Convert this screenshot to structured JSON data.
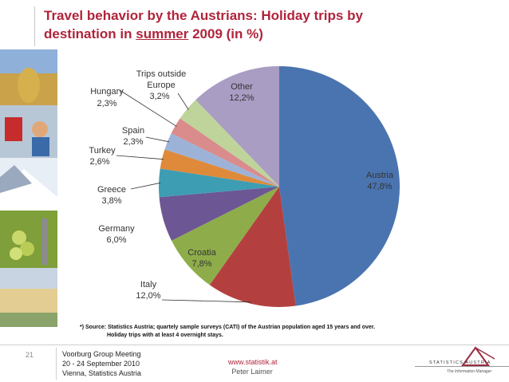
{
  "title": {
    "line1": "Travel behavior by the Austrians: Holiday trips by",
    "line2_pre": "destination in ",
    "line2_emph": "summer",
    "line2_post": " 2009 (in %)"
  },
  "chart_data": {
    "type": "pie",
    "slices": [
      {
        "label": "Austria",
        "value": 47.8,
        "text": "47,8%",
        "color": "#4a74b0"
      },
      {
        "label": "Italy",
        "value": 12.0,
        "text": "12,0%",
        "color": "#b3403f"
      },
      {
        "label": "Croatia",
        "value": 7.8,
        "text": "7,8%",
        "color": "#8ead4a"
      },
      {
        "label": "Germany",
        "value": 6.0,
        "text": "6,0%",
        "color": "#6d5694"
      },
      {
        "label": "Greece",
        "value": 3.8,
        "text": "3,8%",
        "color": "#3d9db2"
      },
      {
        "label": "Turkey",
        "value": 2.6,
        "text": "2,6%",
        "color": "#df8a3a"
      },
      {
        "label": "Spain",
        "value": 2.3,
        "text": "2,3%",
        "color": "#9db2d7"
      },
      {
        "label": "Hungary",
        "value": 2.3,
        "text": "2,3%",
        "color": "#d98c8b"
      },
      {
        "label": "Trips outside Europe",
        "value": 3.2,
        "text": "3,2%",
        "color": "#bfd49a"
      },
      {
        "label": "Other",
        "value": 12.2,
        "text": "12,2%",
        "color": "#a99dc3"
      }
    ]
  },
  "labels": {
    "austria": {
      "name": "Austria",
      "value": "47,8%"
    },
    "italy": {
      "name": "Italy",
      "value": "12,0%"
    },
    "croatia": {
      "name": "Croatia",
      "value": "7,8%"
    },
    "germany": {
      "name": "Germany",
      "value": "6,0%"
    },
    "greece": {
      "name": "Greece",
      "value": "3,8%"
    },
    "turkey": {
      "name": "Turkey",
      "value": "2,6%"
    },
    "spain": {
      "name": "Spain",
      "value": "2,3%"
    },
    "hungary": {
      "name": "Hungary",
      "value": "2,3%"
    },
    "outside": {
      "name1": "Trips outside",
      "name2": "Europe",
      "value": "3,2%"
    },
    "other": {
      "name": "Other",
      "value": "12,2%"
    }
  },
  "footnote": {
    "line1": "*) Source: Statistics Austria; quartely sample surveys (CATI) of the Austrian population aged 15 years and over.",
    "line2": "Holiday trips with at least 4 overnight stays."
  },
  "footer": {
    "slide_number": "21",
    "meeting_line1": "Voorburg Group Meeting",
    "meeting_line2": "20 - 24 September 2010",
    "meeting_line3": "Vienna, Statistics Austria",
    "website": "www.statistik.at",
    "presenter": "Peter Laimer",
    "logo_text": "STATISTICS AUSTRIA",
    "logo_tagline": "The Information Manager"
  }
}
